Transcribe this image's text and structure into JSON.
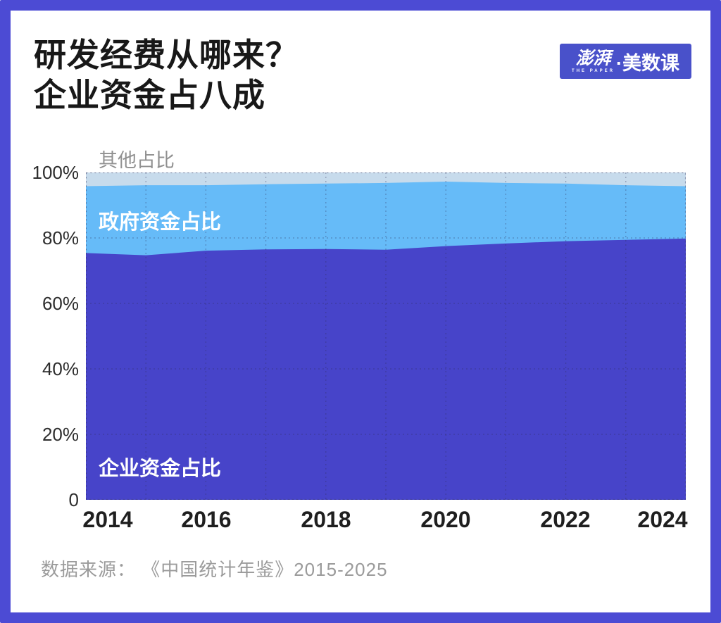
{
  "page": {
    "background": "#ffffff",
    "frame_color": "#4C4BD4"
  },
  "header": {
    "title_line1": "研发经费从哪来？",
    "title_line2": "企业资金占八成"
  },
  "logo": {
    "brand": "澎湃",
    "brand_sub": "THE PAPER",
    "suffix": "·美数课",
    "bg_color": "#4951CA"
  },
  "chart": {
    "other_label": "其他占比",
    "gov_label": "政府资金占比",
    "ent_label": "企业资金占比",
    "y_ticks": [
      "100%",
      "80%",
      "60%",
      "40%",
      "20%",
      "0"
    ],
    "x_ticks": [
      "2014",
      "2016",
      "2018",
      "2020",
      "2022",
      "2024"
    ]
  },
  "source": {
    "text": "数据来源： 《中国统计年鉴》2015-2025"
  },
  "chart_data": {
    "type": "area",
    "stacked": true,
    "x": [
      2014,
      2015,
      2016,
      2017,
      2018,
      2019,
      2020,
      2021,
      2022,
      2023,
      2024
    ],
    "series": [
      {
        "name": "企业资金占比",
        "color": "#4744C9",
        "values": [
          75.4,
          74.7,
          76.1,
          76.5,
          76.6,
          76.4,
          77.5,
          78.3,
          79.0,
          79.4,
          79.8
        ]
      },
      {
        "name": "政府资金占比",
        "color": "#66BBF8",
        "values": [
          20.4,
          21.4,
          20.0,
          19.9,
          20.0,
          20.4,
          19.7,
          18.5,
          17.6,
          16.7,
          16.0
        ]
      },
      {
        "name": "其他占比",
        "color": "#C7DBEC",
        "values": [
          4.2,
          3.9,
          3.9,
          3.6,
          3.4,
          3.2,
          2.8,
          3.2,
          3.4,
          3.9,
          4.2
        ]
      }
    ],
    "ylabel": "",
    "xlabel": "",
    "ylim": [
      0,
      100
    ],
    "y_tick_values": [
      0,
      20,
      40,
      60,
      80,
      100
    ],
    "x_tick_values": [
      2014,
      2016,
      2018,
      2020,
      2022,
      2024
    ],
    "grid": true,
    "grid_style": "dashed",
    "legend_position": "inline-labels"
  }
}
